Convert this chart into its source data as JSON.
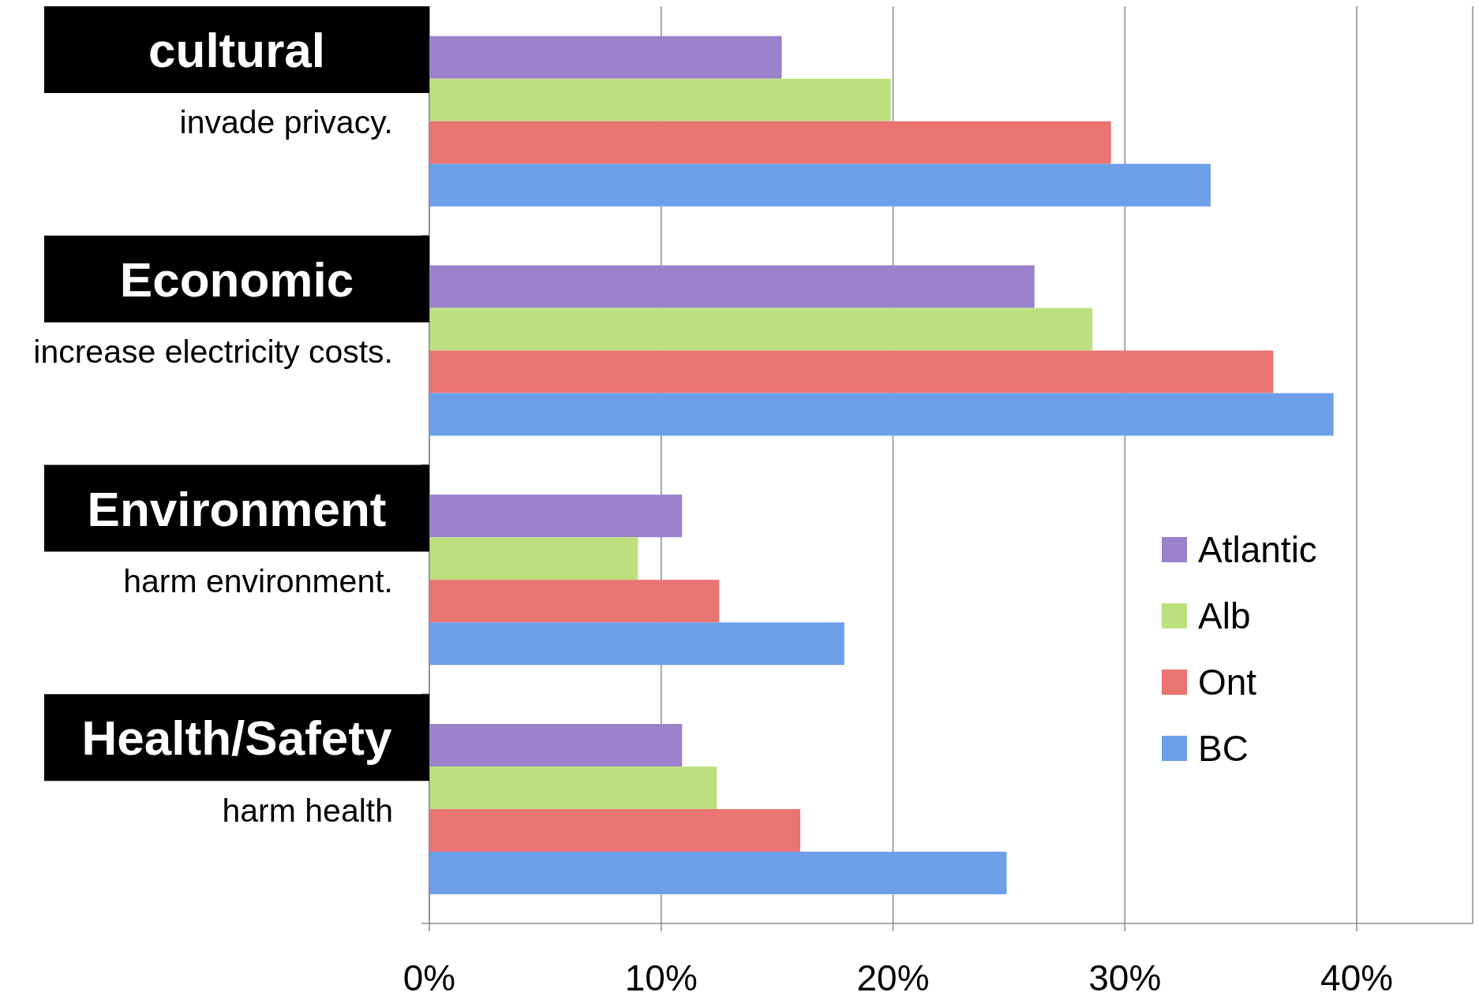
{
  "chart_data": {
    "type": "bar",
    "orientation": "horizontal",
    "categories": [
      "cultural",
      "Economic",
      "Environment",
      "Health/Safety"
    ],
    "annotations": [
      "invade privacy.",
      "increase electricity costs.",
      "harm environment.",
      "harm health"
    ],
    "series": [
      {
        "name": "Atlantic",
        "color": "#9b80cc",
        "values": [
          15.2,
          26.1,
          10.9,
          10.9
        ]
      },
      {
        "name": "Alb",
        "color": "#bde07f",
        "values": [
          19.9,
          28.6,
          9.0,
          12.4
        ]
      },
      {
        "name": "Ont",
        "color": "#e97472",
        "values": [
          29.4,
          36.4,
          12.5,
          16.0
        ]
      },
      {
        "name": "BC",
        "color": "#6d9fe9",
        "values": [
          33.7,
          39.0,
          17.9,
          24.9
        ]
      }
    ],
    "xlim": [
      0,
      45
    ],
    "xticks": [
      {
        "value": 0,
        "label": "0%"
      },
      {
        "value": 10,
        "label": "10%"
      },
      {
        "value": 20,
        "label": "20%"
      },
      {
        "value": 30,
        "label": "30%"
      },
      {
        "value": 40,
        "label": "40%"
      }
    ],
    "grid": "x",
    "legend": "right"
  }
}
